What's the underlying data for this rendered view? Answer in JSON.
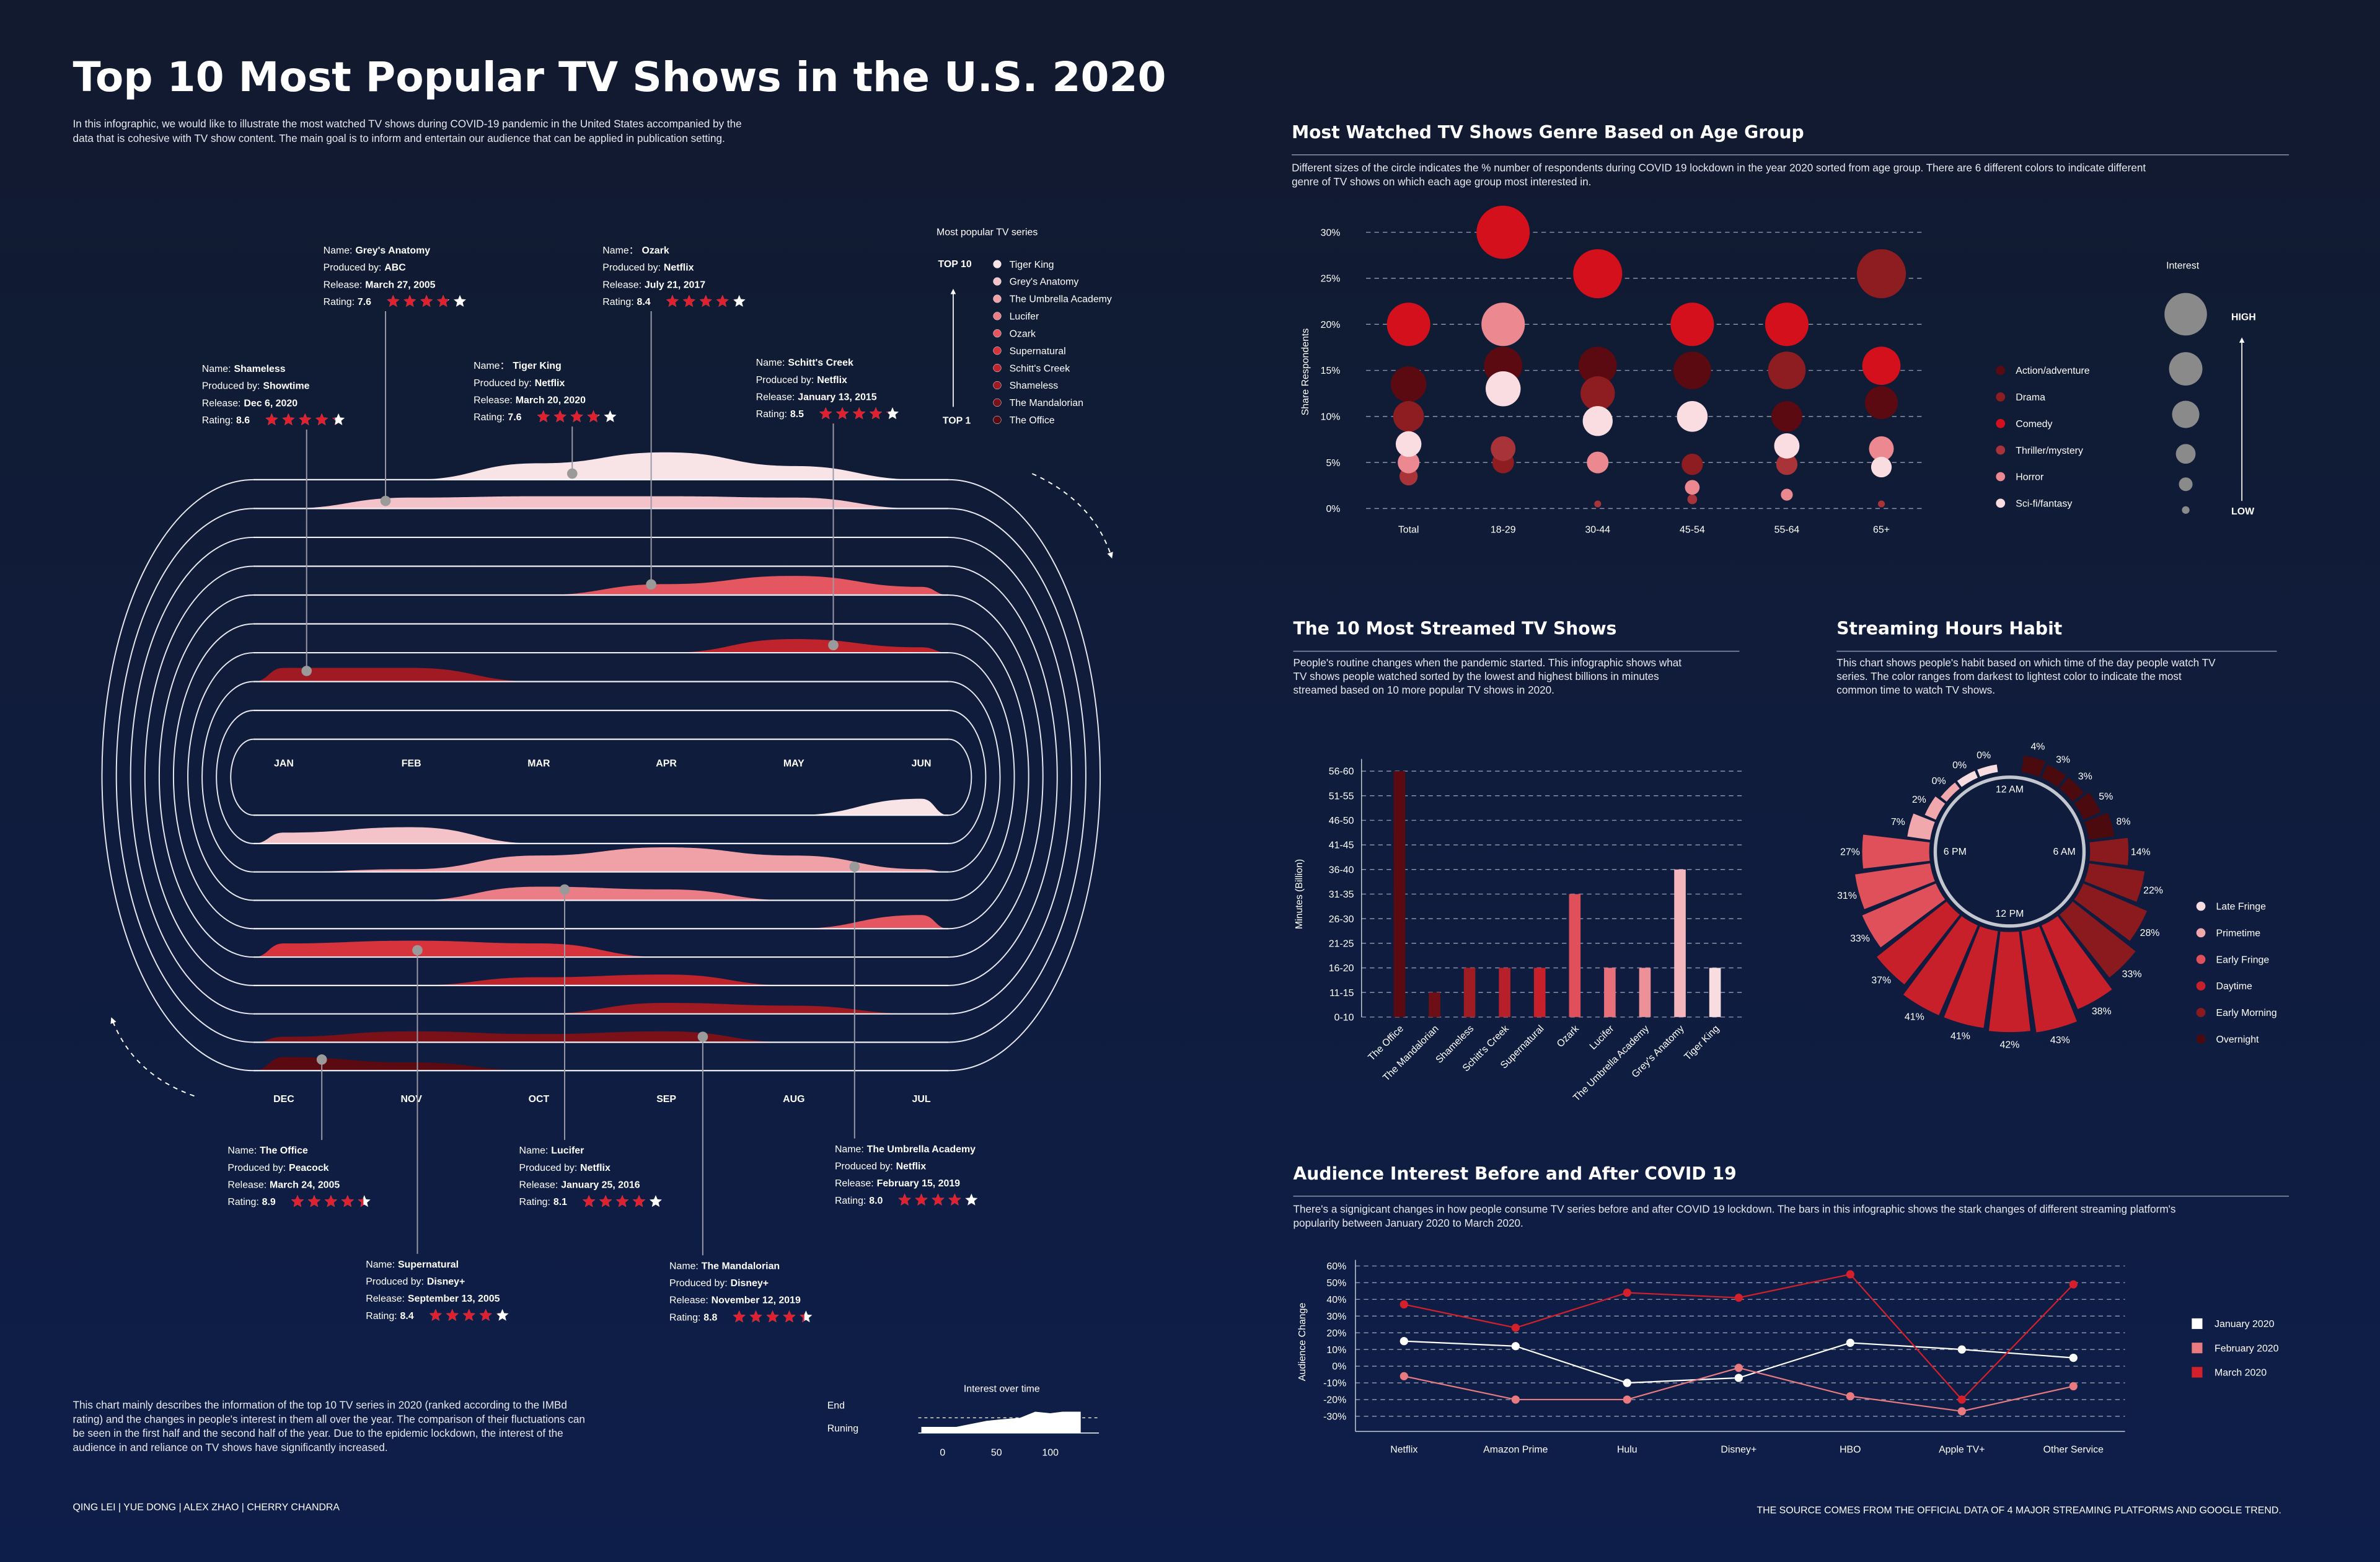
{
  "title": "Top 10 Most Popular TV Shows in the U.S. 2020",
  "intro": [
    "In this infographic, we would like to illustrate the most watched TV shows during COVID-19 pandemic in the United States accompanied by the",
    "data that is cohesive with TV show content. The main goal is to inform and entertain our audience that can be applied in publication setting."
  ],
  "note": [
    "This chart mainly describes the information of the top 10 TV series in 2020 (ranked according to the IMBd",
    "rating) and the changes in people's interest in them all over the year. The comparison of their fluctuations can",
    "be seen in the first half and the second half of the year. Due to the epidemic lockdown, the interest of the",
    "audience in and reliance on TV shows have significantly increased."
  ],
  "authors": "QING LEI | YUE DONG | ALEX ZHAO | CHERRY CHANDRA",
  "source": "THE SOURCE COMES FROM THE OFFICIAL DATA OF 4 MAJOR STREAMING PLATFORMS AND GOOGLE TREND.",
  "card_labels": {
    "name": "Name:",
    "producer": "Produced by:",
    "release": "Release:",
    "rating": "Rating:"
  },
  "chart_data": [
    {
      "type": "ridgeline",
      "title": "Most popular TV series",
      "top_label": "TOP 10",
      "bottom_label": "TOP 1",
      "categories": [
        "JAN",
        "FEB",
        "MAR",
        "APR",
        "MAY",
        "JUN",
        "JUL",
        "AUG",
        "SEP",
        "OCT",
        "NOV",
        "DEC"
      ],
      "ylim": [
        0,
        100
      ],
      "legend_title": "Interest over time",
      "legend_labels": [
        "End",
        "Runing"
      ],
      "legend_ticks": [
        0,
        50,
        100
      ],
      "series": [
        {
          "name": "Tiger King",
          "name_label": "Name：",
          "color": "#f8e4e7",
          "producer": "Netflix",
          "release": "March 20, 2020",
          "rating": 7.6,
          "values": [
            0,
            0,
            60,
            100,
            50,
            0,
            60,
            0,
            0,
            0,
            0,
            0
          ]
        },
        {
          "name": "Grey's Anatomy",
          "color": "#f4c3c9",
          "producer": "ABC",
          "release": "March 27, 2005",
          "rating": 7.6,
          "values": [
            0,
            40,
            45,
            45,
            40,
            0,
            0,
            0,
            0,
            0,
            60,
            40
          ]
        },
        {
          "name": "The Umbrella Academy",
          "color": "#f0a1a8",
          "producer": "Netflix",
          "release": "February 15, 2019",
          "rating": 8,
          "rating_label": "8.0",
          "values": [
            0,
            0,
            0,
            0,
            0,
            0,
            10,
            60,
            90,
            60,
            10,
            0
          ]
        },
        {
          "name": "Lucifer",
          "color": "#ea7d86",
          "producer": "Netflix",
          "release": "January 25, 2016",
          "rating": 8.1,
          "values": [
            0,
            0,
            0,
            0,
            0,
            0,
            0,
            0,
            40,
            50,
            0,
            0
          ]
        },
        {
          "name": "Ozark",
          "name_label": "Name：",
          "color": "#e45761",
          "producer": "Netflix",
          "release": "July 21, 2017",
          "rating": 8.4,
          "values": [
            0,
            0,
            0,
            40,
            70,
            30,
            50,
            0,
            0,
            0,
            0,
            0
          ]
        },
        {
          "name": "Supernatural",
          "color": "#d6333d",
          "producer": "Disney+",
          "release": "September 13, 2005",
          "rating": 8.4,
          "values": [
            0,
            0,
            0,
            0,
            0,
            0,
            0,
            0,
            0,
            50,
            60,
            50
          ]
        },
        {
          "name": "Schitt's Creek",
          "color": "#bf232c",
          "producer": "Netflix",
          "release": "January 13, 2015",
          "rating": 8.5,
          "values": [
            0,
            0,
            0,
            0,
            50,
            20,
            0,
            0,
            40,
            30,
            0,
            0
          ]
        },
        {
          "name": "Shameless",
          "color": "#9f1a22",
          "producer": "Showtime",
          "release": "Dec 6, 2020",
          "rating": 8.6,
          "values": [
            50,
            50,
            0,
            0,
            0,
            0,
            0,
            30,
            40,
            0,
            0,
            0
          ]
        },
        {
          "name": "The Mandalorian",
          "color": "#7b1118",
          "producer": "Disney+",
          "release": "November 12, 2019",
          "rating": 8.8,
          "values": [
            0,
            0,
            0,
            0,
            0,
            0,
            0,
            0,
            40,
            30,
            40,
            20
          ]
        },
        {
          "name": "The Office",
          "color": "#5a0a10",
          "producer": "Peacock",
          "release": "March 24, 2005",
          "rating": 8.9,
          "values": [
            0,
            0,
            0,
            0,
            0,
            0,
            0,
            0,
            0,
            0,
            30,
            50
          ]
        }
      ]
    },
    {
      "type": "bubble",
      "title": "Most Watched TV Shows Genre Based on Age Group",
      "description": [
        "Different sizes of the circle indicates the % number of respondents during COVID 19 lockdown in the year 2020 sorted from age group. There are 6 different colors to indicate different",
        "genre of TV shows on which each age group most interested in."
      ],
      "y_label": "Share  Respondents",
      "categories": [
        "Total",
        "18-29",
        "30-44",
        "45-54",
        "55-64",
        "65+"
      ],
      "ylim": [
        0,
        30
      ],
      "yticks": [
        {
          "value": 0,
          "label": "0%"
        },
        {
          "value": 5,
          "label": "5%"
        },
        {
          "value": 10,
          "label": "10%"
        },
        {
          "value": 15,
          "label": "15%"
        },
        {
          "value": 20,
          "label": "20%"
        },
        {
          "value": 25,
          "label": "25%"
        },
        {
          "value": 30,
          "label": "30%"
        }
      ],
      "grid": true,
      "size_legend": {
        "title": "Interest",
        "high": "HIGH",
        "low": "LOW"
      },
      "series": [
        {
          "name": "Action/adventure",
          "color": "#5a0a10",
          "values": [
            13.5,
            15.5,
            15.5,
            15,
            10,
            11.5
          ]
        },
        {
          "name": "Drama",
          "color": "#8e1d22",
          "values": [
            10,
            5,
            12.5,
            4.8,
            15,
            25.5
          ]
        },
        {
          "name": "Comedy",
          "color": "#d3101b",
          "values": [
            20,
            30,
            25.5,
            20,
            20,
            15.5
          ]
        },
        {
          "name": "Thriller/mystery",
          "color": "#a8343a",
          "values": [
            3.5,
            6.5,
            0.5,
            1,
            4.8,
            0.5
          ]
        },
        {
          "name": "Horror",
          "color": "#eb8890",
          "values": [
            5,
            20,
            5,
            2.3,
            1.5,
            6.5
          ]
        },
        {
          "name": "Sci-fi/fantasy",
          "color": "#f9dde0",
          "values": [
            7,
            13,
            9.5,
            10,
            6.8,
            4.5
          ]
        }
      ]
    },
    {
      "type": "bar",
      "title": "The 10 Most Streamed TV Shows",
      "description": [
        "People's routine changes when the pandemic started. This infographic shows what",
        "TV shows people watched sorted by the lowest and highest billions in minutes",
        "streamed based on 10 more popular TV shows in 2020."
      ],
      "y_label": "Minutes (Billion)",
      "categories": [
        "The Office",
        "The Mandalorian",
        "Shameless",
        "Schitt's Creek",
        "Supernatural",
        "Ozark",
        "Lucifer",
        "The Umbrella Academy",
        "Grey's Anatomy",
        "Tiger King"
      ],
      "values": [
        60,
        15,
        20,
        20,
        20,
        35,
        20,
        20,
        40,
        20
      ],
      "colors": [
        "#5a0a10",
        "#6e0f16",
        "#9e1c22",
        "#b5202a",
        "#c8202a",
        "#e0505a",
        "#e8707a",
        "#ee9098",
        "#f4b5bc",
        "#f8dde0"
      ],
      "ylim": [
        10,
        60
      ],
      "yticks": [
        {
          "value": 10,
          "label": "0-10"
        },
        {
          "value": 15,
          "label": "11-15"
        },
        {
          "value": 20,
          "label": "16-20"
        },
        {
          "value": 25,
          "label": "21-25"
        },
        {
          "value": 30,
          "label": "26-30"
        },
        {
          "value": 35,
          "label": "31-35"
        },
        {
          "value": 40,
          "label": "36-40"
        },
        {
          "value": 45,
          "label": "41-45"
        },
        {
          "value": 50,
          "label": "46-50"
        },
        {
          "value": 55,
          "label": "51-55"
        },
        {
          "value": 60,
          "label": "56-60"
        }
      ],
      "grid": true
    },
    {
      "type": "radial-bar",
      "title": "Streaming Hours Habit",
      "description": [
        "This chart shows people's habit based on which time of the day people watch TV",
        "series. The color ranges from darkest to lightest color to indicate the most",
        "common time to watch TV shows."
      ],
      "axis_labels": [
        "12 AM",
        "6 AM",
        "12 PM",
        "6 PM"
      ],
      "values": [
        null,
        4,
        3,
        3,
        5,
        8,
        14,
        22,
        28,
        33,
        38,
        43,
        42,
        41,
        41,
        37,
        33,
        31,
        27,
        7,
        2,
        0,
        0,
        0
      ],
      "value_labels": [
        null,
        "4%",
        "3%",
        "3%",
        "5%",
        "8%",
        "14%",
        "22%",
        "28%",
        "33%",
        "38%",
        "43%",
        "42%",
        "41%",
        "41%",
        "37%",
        "33%",
        "31%",
        "27%",
        "7%",
        "2%",
        "0%",
        "0%",
        "0%"
      ],
      "colors": [
        "#4a0a0e",
        "#4a0a0e",
        "#4a0a0e",
        "#4a0a0e",
        "#4a0a0e",
        "#4a0a0e",
        "#8b1a1e",
        "#8b1a1e",
        "#8b1a1e",
        "#8b1a1e",
        "#c8202a",
        "#c8202a",
        "#c8202a",
        "#c8202a",
        "#c8202a",
        "#c8202a",
        "#e0505a",
        "#e0505a",
        "#e0505a",
        "#f0a8ad",
        "#f0a8ad",
        "#f0a8ad",
        "#f8dde0",
        "#f8dde0"
      ],
      "legend": [
        {
          "name": "Late Fringe",
          "color": "#f8dde0"
        },
        {
          "name": "Primetime",
          "color": "#f0a8ad"
        },
        {
          "name": "Early Fringe",
          "color": "#e0505a"
        },
        {
          "name": "Daytime",
          "color": "#c8202a"
        },
        {
          "name": "Early Morning",
          "color": "#8b1a1e"
        },
        {
          "name": "Overnight",
          "color": "#4a0a0e"
        }
      ]
    },
    {
      "type": "line",
      "title": "Audience Interest Before and After COVID 19",
      "description": [
        "There's a signigicant changes in how people consume TV series before and after COVID 19 lockdown. The bars in this infographic shows the stark changes of different streaming platform's",
        "popularity between January 2020 to March 2020."
      ],
      "y_label": "Audience Change",
      "categories": [
        "Netflix",
        "Amazon Prime",
        "Hulu",
        "Disney+",
        "HBO",
        "Apple TV+",
        "Other Service"
      ],
      "ylim": [
        -30,
        60
      ],
      "yticks": [
        {
          "value": 60,
          "label": "60%"
        },
        {
          "value": 50,
          "label": "50%"
        },
        {
          "value": 40,
          "label": "40%"
        },
        {
          "value": 30,
          "label": "30%"
        },
        {
          "value": 20,
          "label": "20%"
        },
        {
          "value": 10,
          "label": "10%"
        },
        {
          "value": 0,
          "label": "0%"
        },
        {
          "value": -10,
          "label": "-10%"
        },
        {
          "value": -20,
          "label": "-20%"
        },
        {
          "value": -30,
          "label": "-30%"
        }
      ],
      "grid": true,
      "series": [
        {
          "name": "January 2020",
          "color": "#ffffff",
          "values": [
            15,
            12,
            -10,
            -7,
            14,
            10,
            5
          ]
        },
        {
          "name": "February 2020",
          "color": "#e87a80",
          "values": [
            -6,
            -20,
            -20,
            -1,
            -18,
            -27,
            -12
          ]
        },
        {
          "name": "March 2020",
          "color": "#d3202a",
          "values": [
            37,
            23,
            44,
            41,
            55,
            -20,
            49
          ]
        }
      ]
    }
  ]
}
